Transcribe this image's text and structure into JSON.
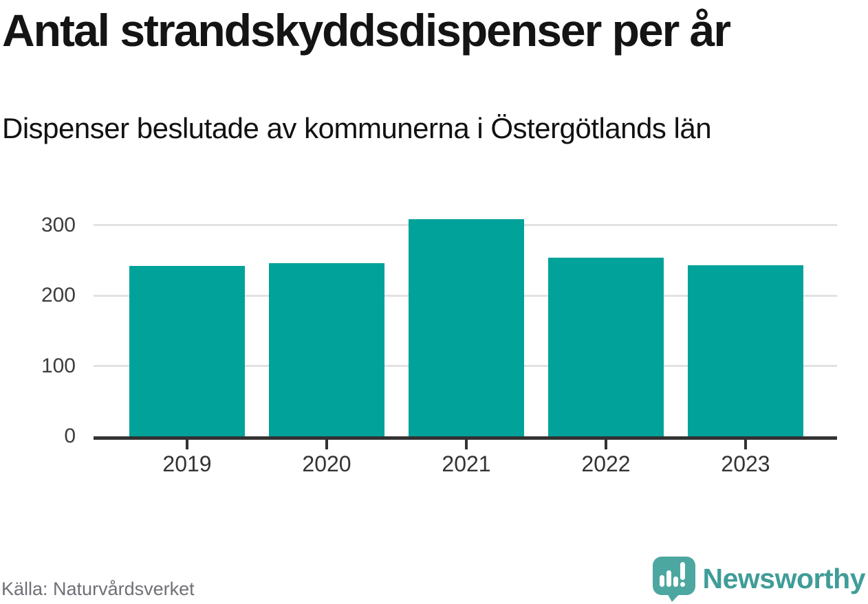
{
  "header": {
    "title": "Antal strandskyddsdispenser per år",
    "subtitle": "Dispenser beslutade av kommunerna i Östergötlands län"
  },
  "footer": {
    "source": "Källa: Naturvårdsverket",
    "brand": "Newsworthy"
  },
  "colors": {
    "bar": "#00a29a",
    "gridline": "#e2e2e2",
    "axis": "#323232",
    "brand_text_teal": "#3f9d98",
    "logo_bubble_teal": "#4ca7a0"
  },
  "chart_data": {
    "type": "bar",
    "title": "Antal strandskyddsdispenser per år",
    "subtitle": "Dispenser beslutade av kommunerna i Östergötlands län",
    "categories": [
      "2019",
      "2020",
      "2021",
      "2022",
      "2023"
    ],
    "values": [
      242,
      246,
      308,
      254,
      243
    ],
    "xlabel": "",
    "ylabel": "",
    "ylim": [
      0,
      326
    ],
    "yticks": [
      0,
      100,
      200,
      300
    ],
    "grid": true,
    "legend": false,
    "bar_color": "#00a29a",
    "source": "Källa: Naturvårdsverket"
  }
}
